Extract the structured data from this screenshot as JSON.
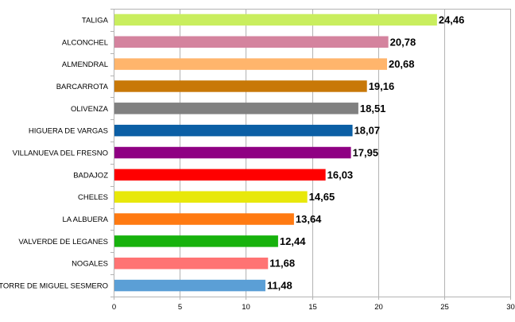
{
  "chart_data": {
    "type": "bar",
    "orientation": "horizontal",
    "title": "",
    "xlabel": "",
    "ylabel": "",
    "xlim": [
      0,
      30
    ],
    "xticks": [
      0,
      5,
      10,
      15,
      20,
      25,
      30
    ],
    "grid": true,
    "legend": "none",
    "categories": [
      "TALIGA",
      "ALCONCHEL",
      "ALMENDRAL",
      "BARCARROTA",
      "OLIVENZA",
      "HIGUERA DE VARGAS",
      "VILLANUEVA DEL FRESNO",
      "BADAJOZ",
      "CHELES",
      "LA ALBUERA",
      "VALVERDE DE LEGANES",
      "NOGALES",
      "TORRE DE MIGUEL SESMERO"
    ],
    "values": [
      24.46,
      20.78,
      20.68,
      19.16,
      18.51,
      18.07,
      17.95,
      16.03,
      14.65,
      13.64,
      12.44,
      11.68,
      11.48
    ],
    "value_labels": [
      "24,46",
      "20,78",
      "20,68",
      "19,16",
      "18,51",
      "18,07",
      "17,95",
      "16,03",
      "14,65",
      "13,64",
      "12,44",
      "11,68",
      "11,48"
    ],
    "tick_labels": [
      "0",
      "5",
      "10",
      "15",
      "20",
      "25",
      "30"
    ],
    "colors": [
      "#c9ee5e",
      "#d4839e",
      "#ffb56c",
      "#c87808",
      "#808080",
      "#0b5fa5",
      "#8f0083",
      "#ff0000",
      "#e8e80a",
      "#ff7a12",
      "#17b20d",
      "#ff7373",
      "#5b9fd6"
    ]
  }
}
